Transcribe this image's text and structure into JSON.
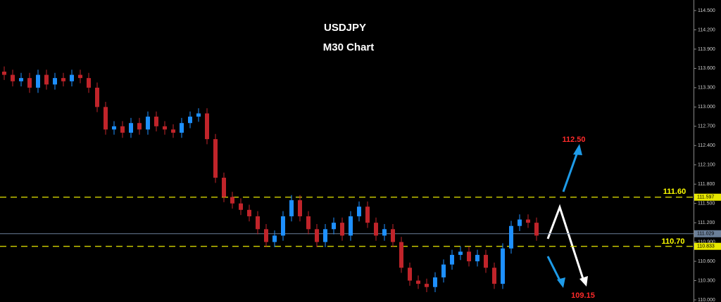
{
  "chart_data": {
    "type": "candlestick",
    "title": "USDJPY",
    "subtitle": "M30 Chart",
    "open": [
      113.55,
      113.5,
      113.4,
      113.45,
      113.3,
      113.5,
      113.35,
      113.45,
      113.4,
      113.5,
      113.45,
      113.3,
      113.0,
      112.65,
      112.7,
      112.6,
      112.75,
      112.65,
      112.85,
      112.7,
      112.65,
      112.6,
      112.75,
      112.85,
      112.9,
      112.5,
      111.9,
      111.6,
      111.5,
      111.4,
      111.3,
      111.1,
      110.9,
      111.0,
      111.3,
      111.55,
      111.3,
      111.1,
      110.9,
      111.1,
      111.2,
      111.0,
      111.3,
      111.45,
      111.2,
      111.0,
      111.1,
      110.9,
      110.5,
      110.3,
      110.25,
      110.2,
      110.35,
      110.55,
      110.7,
      110.75,
      110.6,
      110.7,
      110.5,
      110.25,
      110.8,
      111.15,
      111.25,
      111.2
    ],
    "high": [
      113.63,
      113.58,
      113.53,
      113.53,
      113.58,
      113.58,
      113.53,
      113.53,
      113.58,
      113.58,
      113.53,
      113.38,
      113.08,
      112.78,
      112.78,
      112.83,
      112.83,
      112.93,
      112.93,
      112.78,
      112.73,
      112.83,
      112.93,
      112.98,
      112.98,
      112.58,
      111.98,
      111.68,
      111.58,
      111.48,
      111.38,
      111.18,
      111.08,
      111.38,
      111.63,
      111.63,
      111.38,
      111.18,
      111.18,
      111.28,
      111.28,
      111.38,
      111.53,
      111.53,
      111.28,
      111.18,
      111.18,
      110.98,
      110.58,
      110.38,
      110.33,
      110.43,
      110.63,
      110.78,
      110.83,
      110.83,
      110.78,
      110.78,
      110.58,
      110.88,
      111.23,
      111.33,
      111.33,
      111.28
    ],
    "low": [
      113.42,
      113.32,
      113.32,
      113.22,
      113.22,
      113.27,
      113.27,
      113.32,
      113.32,
      113.37,
      113.22,
      112.92,
      112.57,
      112.57,
      112.52,
      112.52,
      112.57,
      112.57,
      112.62,
      112.57,
      112.52,
      112.52,
      112.67,
      112.77,
      112.42,
      111.82,
      111.52,
      111.42,
      111.32,
      111.22,
      111.02,
      110.82,
      110.82,
      110.92,
      111.22,
      111.22,
      111.02,
      110.82,
      110.82,
      111.02,
      110.92,
      110.92,
      111.22,
      111.12,
      110.92,
      110.92,
      110.82,
      110.42,
      110.22,
      110.17,
      110.12,
      110.12,
      110.27,
      110.47,
      110.62,
      110.52,
      110.52,
      110.42,
      110.17,
      110.17,
      110.72,
      111.07,
      111.12,
      110.92
    ],
    "close": [
      113.5,
      113.4,
      113.45,
      113.3,
      113.5,
      113.35,
      113.45,
      113.4,
      113.5,
      113.45,
      113.3,
      113.0,
      112.65,
      112.7,
      112.6,
      112.75,
      112.65,
      112.85,
      112.7,
      112.65,
      112.6,
      112.75,
      112.85,
      112.9,
      112.5,
      111.9,
      111.6,
      111.5,
      111.4,
      111.3,
      111.1,
      110.9,
      111.0,
      111.3,
      111.55,
      111.3,
      111.1,
      110.9,
      111.1,
      111.2,
      111.0,
      111.3,
      111.45,
      111.2,
      111.0,
      111.1,
      110.9,
      110.5,
      110.3,
      110.25,
      110.2,
      110.35,
      110.55,
      110.7,
      110.75,
      110.6,
      110.7,
      110.5,
      110.25,
      110.8,
      111.15,
      111.25,
      111.2,
      111.0
    ],
    "up_color": "#1e90ff",
    "down_color": "#c0242a",
    "ylim": [
      110.0,
      114.5
    ],
    "yticks": [
      {
        "value": 114.5,
        "label": "114.500"
      },
      {
        "value": 114.2,
        "label": "114.200"
      },
      {
        "value": 113.9,
        "label": "113.900"
      },
      {
        "value": 113.6,
        "label": "113.600"
      },
      {
        "value": 113.3,
        "label": "113.300"
      },
      {
        "value": 113.0,
        "label": "113.000"
      },
      {
        "value": 112.7,
        "label": "112.700"
      },
      {
        "value": 112.4,
        "label": "112.400"
      },
      {
        "value": 112.1,
        "label": "112.100"
      },
      {
        "value": 111.8,
        "label": "111.800"
      },
      {
        "value": 111.5,
        "label": "111.500"
      },
      {
        "value": 111.2,
        "label": "111.200"
      },
      {
        "value": 110.9,
        "label": "110.900"
      },
      {
        "value": 110.6,
        "label": "110.600"
      },
      {
        "value": 110.3,
        "label": "110.300"
      },
      {
        "value": 110.0,
        "label": "110.000"
      }
    ],
    "levels": [
      111.597,
      110.833
    ],
    "level_color": "#e8e800",
    "current_price": 111.029,
    "current_color": "#6b7f99",
    "annotations": [
      "111.60",
      "110.70",
      "112.50",
      "109.15"
    ]
  }
}
